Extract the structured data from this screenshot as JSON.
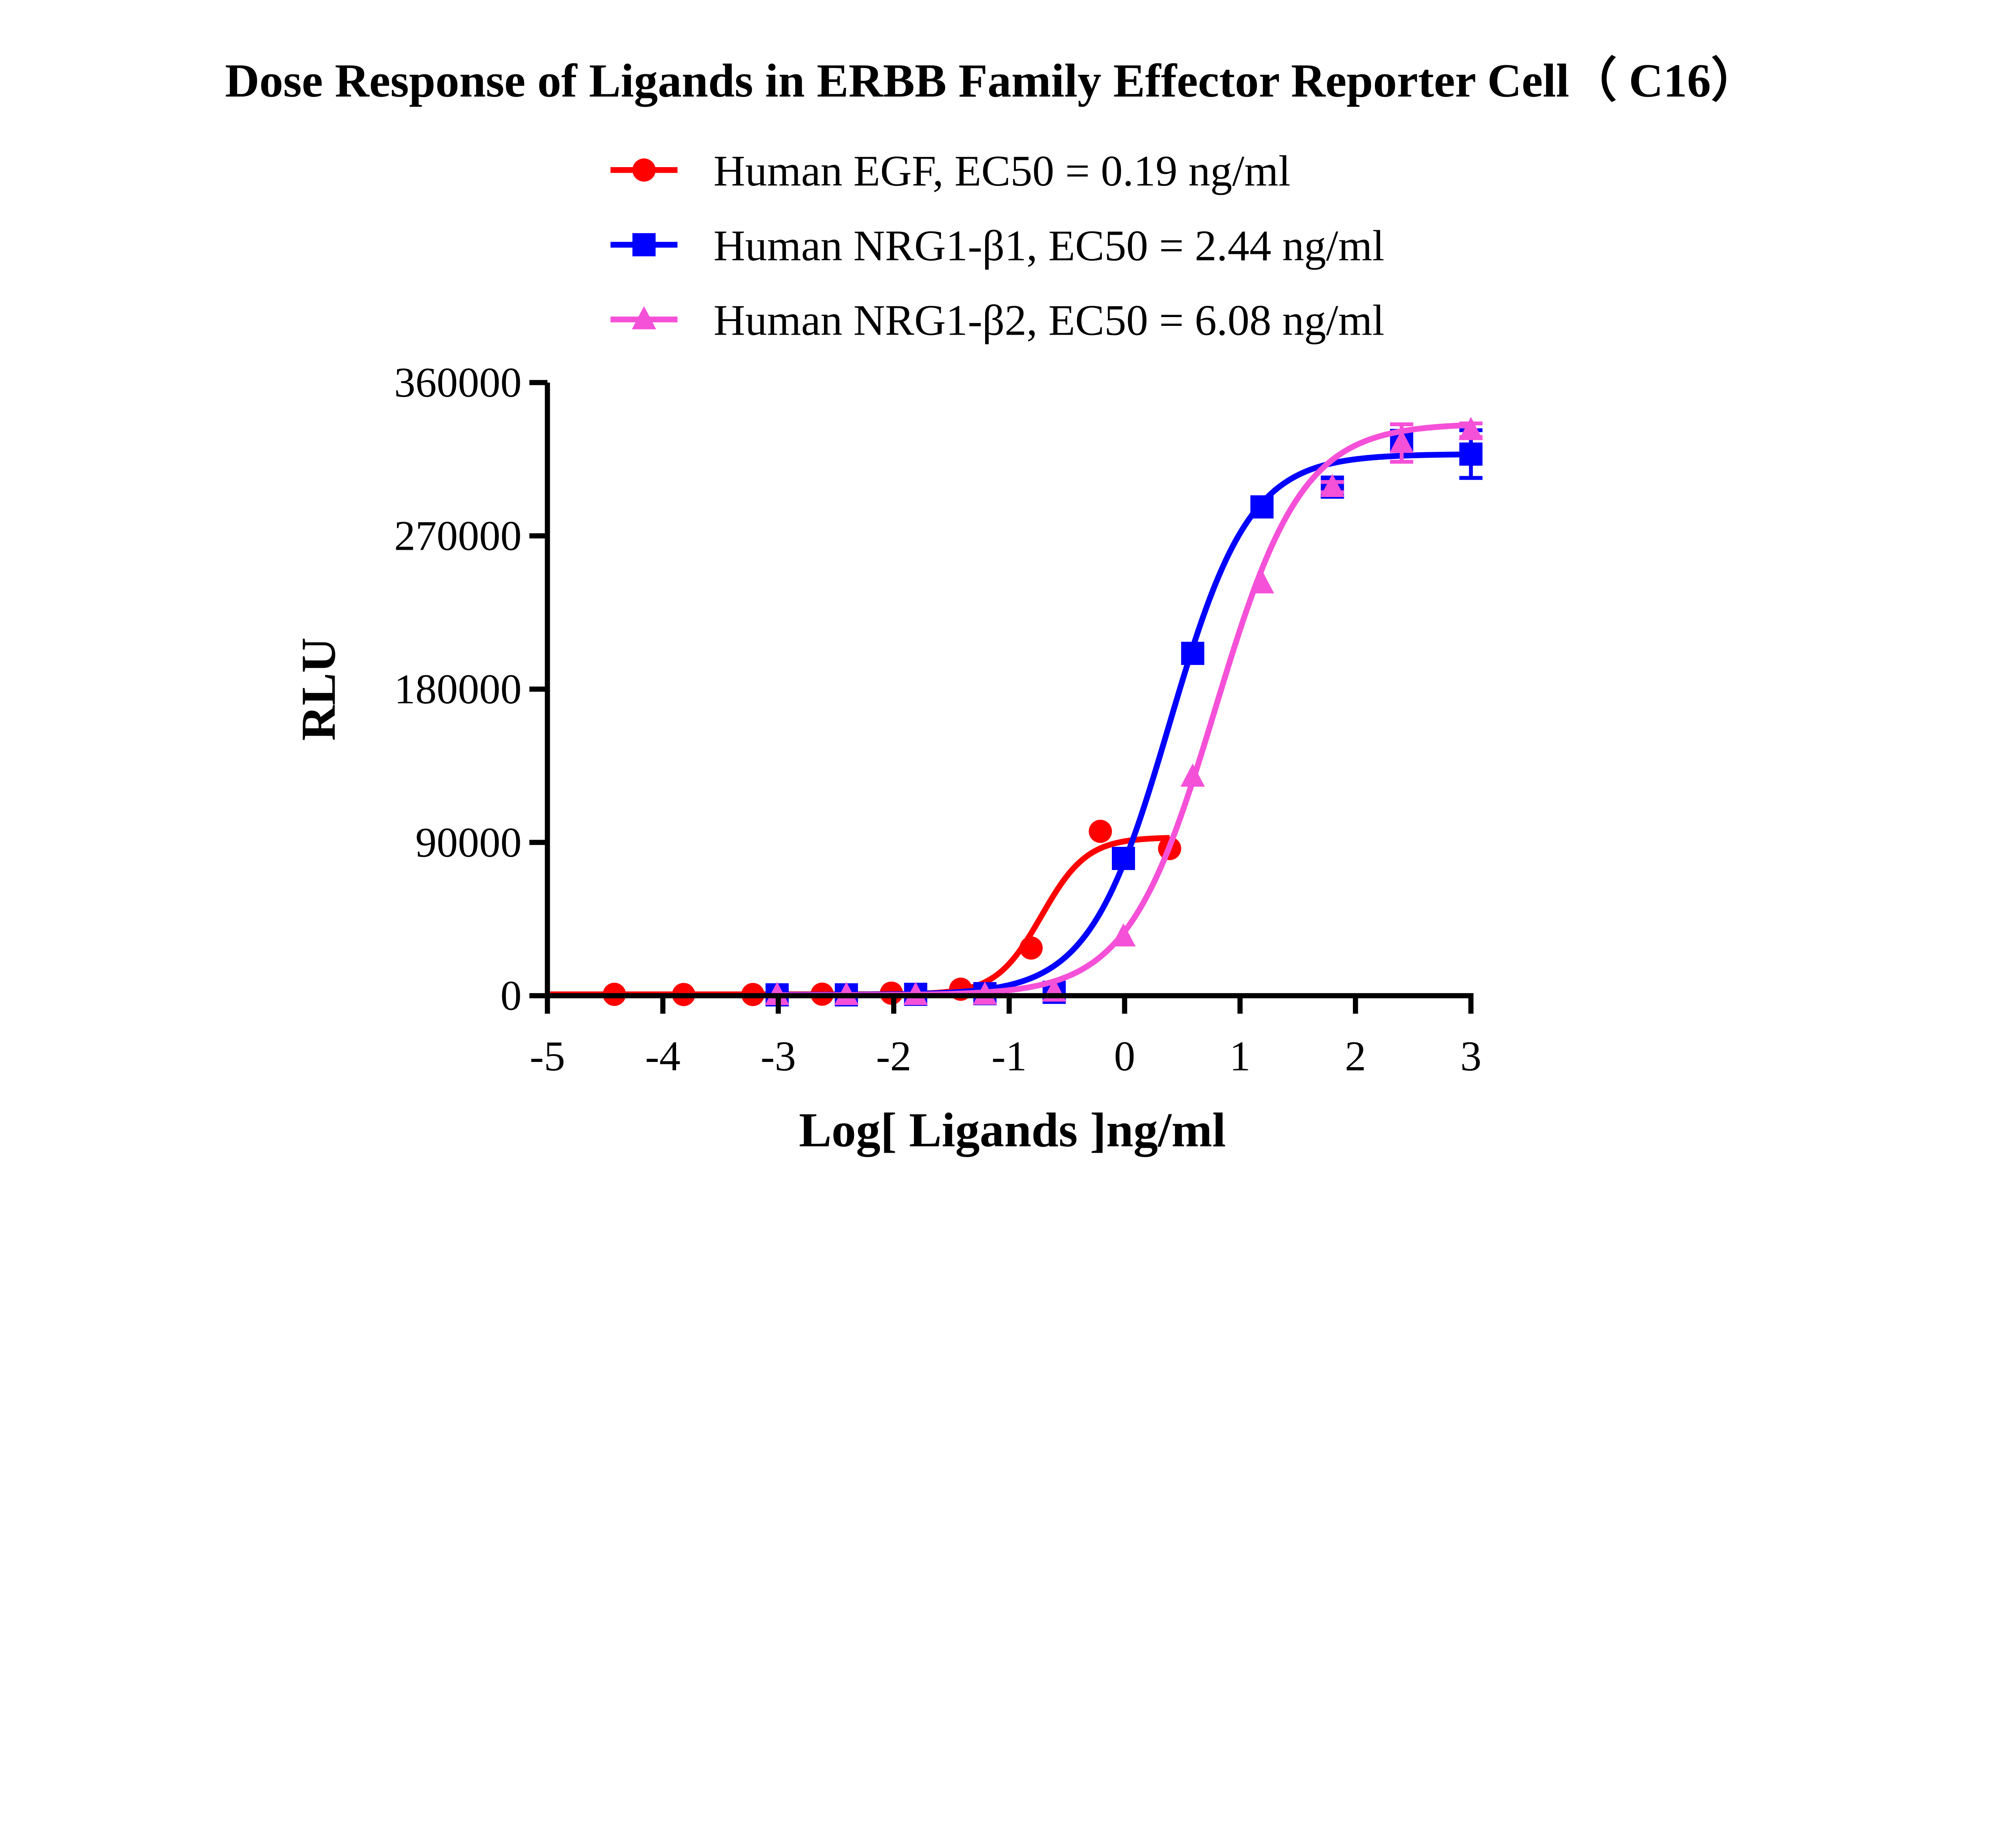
{
  "chart_data": {
    "type": "line",
    "title": "Dose Response of Ligands in ERBB Family Effector Reporter Cell（ C16）",
    "xlabel": "Log[ Ligands ]ng/ml",
    "ylabel": "RLU",
    "xlim": [
      -5,
      3
    ],
    "ylim": [
      0,
      360000
    ],
    "xticks": [
      "-5",
      "-4",
      "-3",
      "-2",
      "-1",
      "0",
      "1",
      "2",
      "3"
    ],
    "yticks": [
      "0",
      "90000",
      "180000",
      "270000",
      "360000"
    ],
    "grid": false,
    "legend_position": "top",
    "series": [
      {
        "name": "Human EGF, EC50 = 0.19 ng/ml",
        "color": "#ff0000",
        "marker": "circle",
        "x": [
          -4.42,
          -3.82,
          -3.22,
          -2.62,
          -2.02,
          -1.42,
          -0.81,
          -0.21,
          0.39
        ],
        "y": [
          800,
          700,
          700,
          900,
          1500,
          3800,
          28000,
          96500,
          86400
        ],
        "fit": {
          "bottom": 800,
          "top": 93000,
          "log_ec50": -0.72,
          "hill": 2.2
        }
      },
      {
        "name": "Human NRG1-β1, EC50 = 2.44 ng/ml",
        "color": "#0000ff",
        "marker": "square",
        "x": [
          -3.01,
          -2.41,
          -1.81,
          -1.21,
          -0.61,
          -0.01,
          0.59,
          1.19,
          1.8,
          2.4,
          3.0
        ],
        "y": [
          500,
          500,
          800,
          1200,
          2000,
          80600,
          201000,
          287000,
          298600,
          326000,
          318000
        ],
        "error": [
          0,
          0,
          0,
          0,
          0,
          0,
          0,
          0,
          3000,
          5000,
          14000
        ],
        "fit": {
          "bottom": 500,
          "top": 318000,
          "log_ec50": 0.387,
          "hill": 1.25
        }
      },
      {
        "name": "Human NRG1-β2, EC50 = 6.08 ng/ml",
        "color": "#f550d8",
        "marker": "triangle",
        "x": [
          -3.01,
          -2.41,
          -1.81,
          -1.21,
          -0.61,
          -0.01,
          0.59,
          1.19,
          1.8,
          2.4,
          3.0
        ],
        "y": [
          300,
          300,
          300,
          500,
          2300,
          34700,
          128500,
          242000,
          298600,
          324500,
          332000
        ],
        "error": [
          0,
          0,
          0,
          0,
          0,
          0,
          0,
          0,
          3000,
          11000,
          4000
        ],
        "fit": {
          "bottom": 300,
          "top": 336000,
          "log_ec50": 0.784,
          "hill": 1.15
        }
      }
    ]
  }
}
